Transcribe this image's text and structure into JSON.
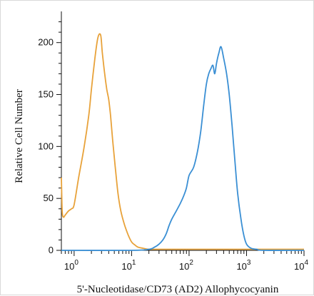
{
  "chart_data": {
    "type": "line",
    "xlabel": "5'-Nucleotidase/CD73 (AD2) Allophycocyanin",
    "ylabel": "Relative Cell Number",
    "x_scale": "log",
    "xlim": [
      0.6,
      10000
    ],
    "ylim": [
      0,
      230
    ],
    "x_ticks": [
      {
        "value": 1,
        "base": "10",
        "exp": "0"
      },
      {
        "value": 10,
        "base": "10",
        "exp": "1"
      },
      {
        "value": 100,
        "base": "10",
        "exp": "2"
      },
      {
        "value": 1000,
        "base": "10",
        "exp": "3"
      },
      {
        "value": 10000,
        "base": "10",
        "exp": "4"
      }
    ],
    "y_ticks": [
      0,
      50,
      100,
      150,
      200
    ],
    "grid": false,
    "series": [
      {
        "color": "#e8a23a",
        "x": [
          0.6,
          0.62,
          0.65,
          0.7,
          0.8,
          0.9,
          1.0,
          1.2,
          1.5,
          1.8,
          2.0,
          2.3,
          2.6,
          2.9,
          3.1,
          3.4,
          3.7,
          4.0,
          4.3,
          4.7,
          5.2,
          5.8,
          6.5,
          7.5,
          8.7,
          10,
          11.5,
          13,
          16,
          20,
          30,
          50,
          100,
          200,
          500,
          1000,
          3000,
          10000
        ],
        "values": [
          70,
          38,
          32,
          34,
          38,
          40,
          44,
          70,
          100,
          130,
          155,
          185,
          205,
          207,
          190,
          170,
          155,
          145,
          130,
          105,
          80,
          55,
          38,
          25,
          15,
          8,
          5,
          3,
          2,
          1,
          1,
          1,
          1,
          1,
          1,
          1,
          1,
          1
        ]
      },
      {
        "color": "#3a8fd4",
        "x": [
          0.6,
          10,
          20,
          25,
          30,
          35,
          40,
          45,
          50,
          60,
          70,
          80,
          90,
          100,
          120,
          140,
          160,
          180,
          200,
          220,
          240,
          260,
          280,
          300,
          330,
          360,
          400,
          450,
          500,
          560,
          630,
          700,
          800,
          900,
          1000,
          1200,
          1500,
          2000,
          10000
        ],
        "values": [
          0,
          0,
          1,
          3,
          6,
          10,
          16,
          24,
          30,
          38,
          45,
          52,
          60,
          72,
          80,
          95,
          115,
          140,
          160,
          170,
          175,
          178,
          170,
          180,
          190,
          196,
          185,
          170,
          150,
          120,
          85,
          55,
          30,
          14,
          6,
          2,
          1,
          0,
          0
        ]
      }
    ]
  }
}
